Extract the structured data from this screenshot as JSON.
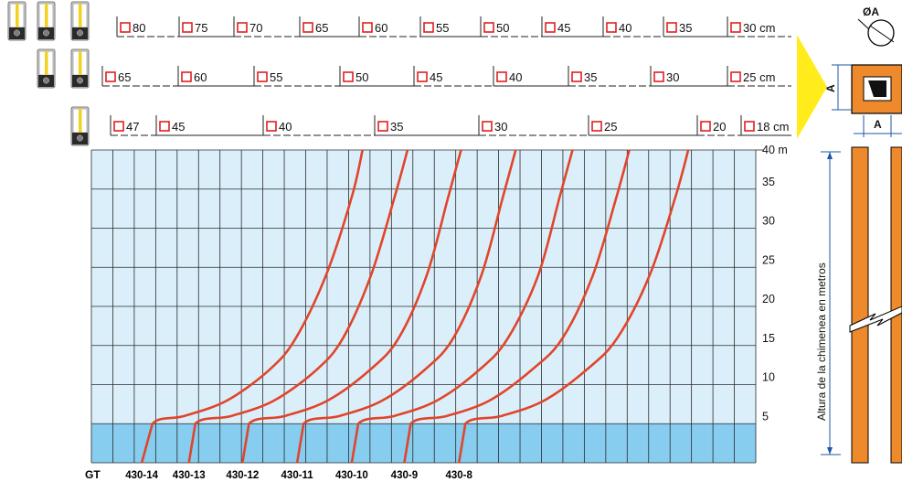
{
  "chart_data": {
    "type": "line",
    "title": "",
    "xlabel": "",
    "ylabel": "Altura de la chimenea en metros",
    "ylim": [
      0,
      40
    ],
    "y_ticks": [
      "5",
      "10",
      "15",
      "20",
      "25",
      "30",
      "35",
      "40 m"
    ],
    "x_axis_prefix": "GT",
    "series": [
      {
        "name": "430-14",
        "x": [
          0,
          0.5,
          2,
          4,
          6,
          7.2,
          8.6,
          9.8,
          10.3
        ],
        "y": [
          0,
          5,
          6,
          8,
          12,
          16,
          24,
          34,
          40
        ]
      },
      {
        "name": "430-13",
        "x": [
          0,
          0.3,
          2,
          4,
          6,
          7.2,
          8.5,
          9.6,
          10.2
        ],
        "y": [
          0,
          5,
          6,
          8,
          12,
          16,
          24,
          34,
          40
        ]
      },
      {
        "name": "430-12",
        "x": [
          0,
          0.3,
          2,
          4,
          6,
          7.3,
          8.6,
          9.6,
          10.2
        ],
        "y": [
          0,
          5,
          6,
          8,
          12,
          16,
          24,
          34,
          40
        ]
      },
      {
        "name": "430-11",
        "x": [
          0,
          0.3,
          2,
          4,
          6,
          7.3,
          8.6,
          9.6,
          10.2
        ],
        "y": [
          0,
          5,
          6,
          8,
          12,
          16,
          24,
          34,
          40
        ]
      },
      {
        "name": "430-10",
        "x": [
          0,
          0.3,
          2,
          4,
          6,
          7.3,
          8.7,
          9.7,
          10.3
        ],
        "y": [
          0,
          5,
          6,
          8,
          12,
          16,
          24,
          34,
          40
        ]
      },
      {
        "name": "430-9",
        "x": [
          0,
          0.3,
          2,
          4,
          6,
          7.4,
          8.8,
          9.9,
          10.5
        ],
        "y": [
          0,
          5,
          6,
          8,
          12,
          16,
          24,
          34,
          40
        ]
      },
      {
        "name": "430-8",
        "x": [
          0,
          0.3,
          2,
          4,
          6,
          7.4,
          8.9,
          10.1,
          10.7
        ],
        "y": [
          0,
          5,
          6,
          8,
          12,
          16,
          24,
          34,
          40
        ]
      }
    ],
    "grid": true
  },
  "scales": [
    {
      "boilers": 3,
      "labels": [
        "80",
        "75",
        "70",
        "65",
        "60",
        "55",
        "50",
        "45",
        "40",
        "35",
        "30 cm"
      ]
    },
    {
      "boilers": 2,
      "labels": [
        "65",
        "60",
        "55",
        "50",
        "45",
        "40",
        "35",
        "30",
        "25 cm"
      ]
    },
    {
      "boilers": 1,
      "labels": [
        "47",
        "45",
        "40",
        "35",
        "30",
        "25",
        "20",
        "18 cm"
      ]
    }
  ],
  "diagram": {
    "diameter_label": "ØA",
    "side_label": "A",
    "chimney_label": "Altura de la chimenea en metros"
  },
  "colors": {
    "grid_bg": "#dbeffa",
    "band": "#86cdef",
    "curve": "#e0452b",
    "chimney": "#ef8a2c",
    "arrow": "#ffec1a",
    "dim": "#1f57a4",
    "marker": "#e02020"
  }
}
